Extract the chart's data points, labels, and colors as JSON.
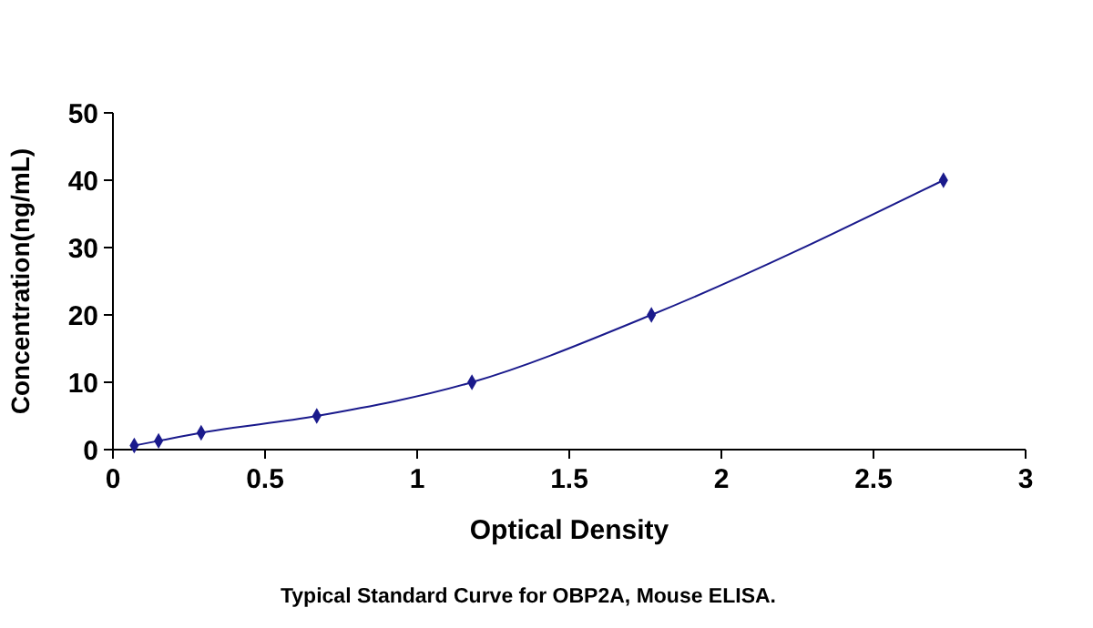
{
  "chart_data": {
    "type": "line",
    "xlabel": "Optical Density",
    "ylabel": "Concentration(ng/mL)",
    "annotations": [
      "Typical Standard Curve for OBP2A, Mouse ELISA."
    ],
    "x": [
      0.07,
      0.15,
      0.29,
      0.67,
      1.18,
      1.77,
      2.73
    ],
    "series": [
      {
        "color": "#1a1a8c",
        "values": [
          0.6,
          1.3,
          2.5,
          5,
          10,
          20,
          40
        ]
      }
    ],
    "xlim": [
      0,
      3
    ],
    "xticks": [
      0,
      0.5,
      1,
      1.5,
      2,
      2.5,
      3
    ],
    "ylim": [
      0,
      50
    ],
    "yticks": [
      0,
      10,
      20,
      30,
      40,
      50
    ],
    "marker": "diamond",
    "line_style": "solid",
    "grid": false
  }
}
